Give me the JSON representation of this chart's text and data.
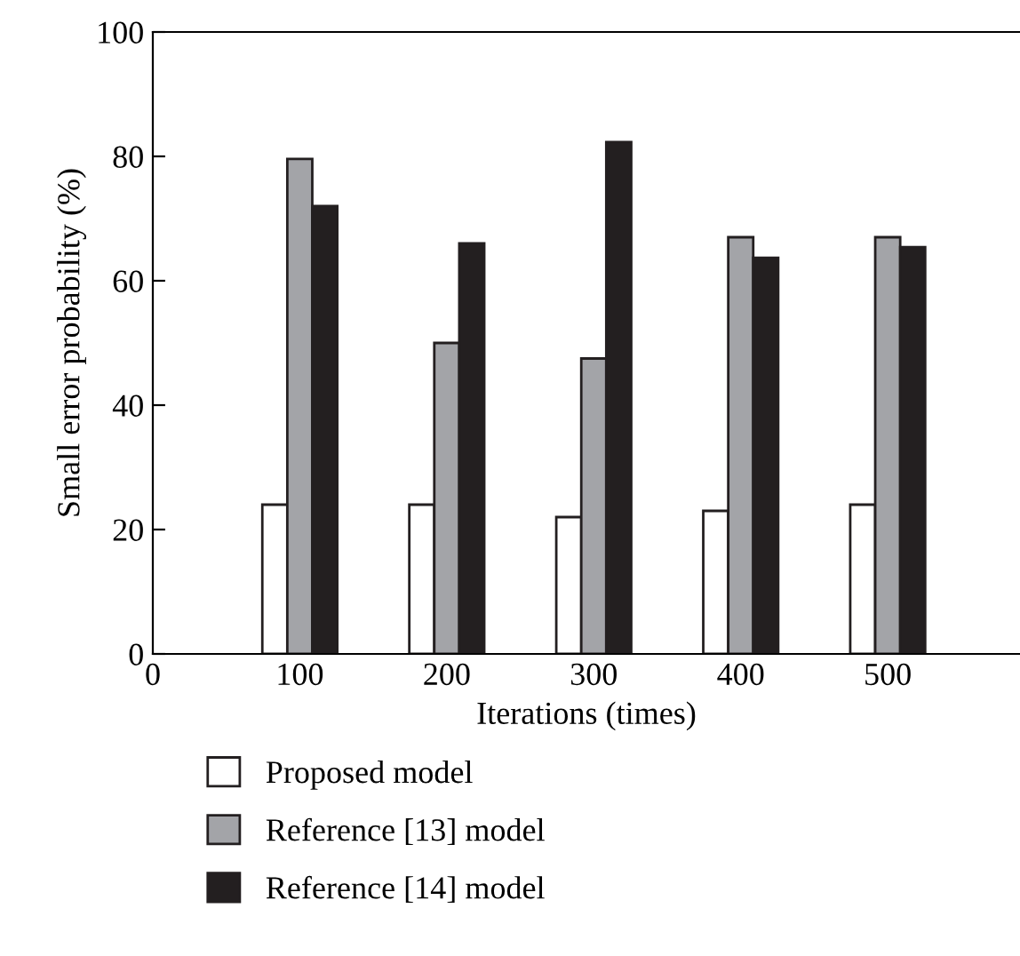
{
  "chart_data": {
    "type": "bar",
    "xlabel": "Iterations (times)",
    "ylabel": "Small error probability (%)",
    "x": [
      100,
      200,
      300,
      400,
      500
    ],
    "series": [
      {
        "name": "Proposed model",
        "color": "#ffffff",
        "values": [
          24,
          24,
          22,
          23,
          24
        ]
      },
      {
        "name": "Reference [13] model",
        "color": "#a3a4a8",
        "values": [
          79.6,
          50,
          47.5,
          67,
          67
        ]
      },
      {
        "name": "Reference [14] model",
        "color": "#231f20",
        "values": [
          72,
          66,
          82.3,
          63.7,
          65.4
        ]
      }
    ],
    "xlim": [
      0,
      590
    ],
    "xticks": [
      0,
      100,
      200,
      300,
      400,
      500
    ],
    "ylim": [
      0,
      100
    ],
    "yticks": [
      0,
      20,
      40,
      60,
      80,
      100
    ],
    "grid": false,
    "legend": "bottom"
  }
}
